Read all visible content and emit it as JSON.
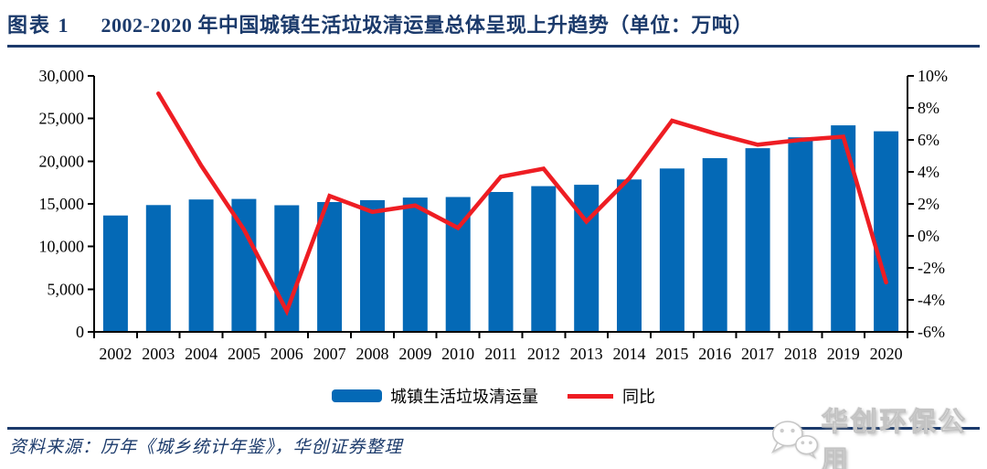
{
  "header": {
    "figure_label": "图表 1",
    "title": "2002-2020 年中国城镇生活垃圾清运量总体呈现上升趋势（单位：万吨）"
  },
  "source": {
    "text": "资料来源：历年《城乡统计年鉴》，华创证券整理"
  },
  "watermark": {
    "icon": "wechat-icon",
    "label": "华创环保公用"
  },
  "colors": {
    "navy": "#1B3A6B",
    "bar_blue": "#0469B6",
    "line_red": "#EE1D23",
    "axis_black": "#000000",
    "watermark_gray": "#C3C3C3"
  },
  "chart_data": {
    "type": "combo",
    "title": "2002-2020 年中国城镇生活垃圾清运量总体呈现上升趋势",
    "unit": "万吨",
    "grid": false,
    "legend_position": "bottom",
    "categories": [
      "2002",
      "2003",
      "2004",
      "2005",
      "2006",
      "2007",
      "2008",
      "2009",
      "2010",
      "2011",
      "2012",
      "2013",
      "2014",
      "2015",
      "2016",
      "2017",
      "2018",
      "2019",
      "2020"
    ],
    "series": [
      {
        "name": "城镇生活垃圾清运量",
        "type": "bar",
        "axis": "left",
        "color": "#0469B6",
        "values": [
          13638,
          14857,
          15509,
          15577,
          14841,
          15215,
          15438,
          15734,
          15805,
          16395,
          17081,
          17239,
          17860,
          19142,
          20362,
          21521,
          22802,
          24206,
          23512
        ]
      },
      {
        "name": "同比",
        "type": "line",
        "axis": "right",
        "color": "#EE1D23",
        "values": [
          null,
          8.9,
          4.4,
          0.4,
          -4.7,
          2.5,
          1.5,
          1.9,
          0.5,
          3.7,
          4.2,
          0.9,
          3.6,
          7.2,
          6.4,
          5.7,
          6.0,
          6.2,
          -2.9
        ]
      }
    ],
    "axes": {
      "left": {
        "min": 0,
        "max": 30000,
        "step": 5000,
        "format": "thousands"
      },
      "right": {
        "min": -6,
        "max": 10,
        "step": 2,
        "format": "percent"
      }
    }
  }
}
